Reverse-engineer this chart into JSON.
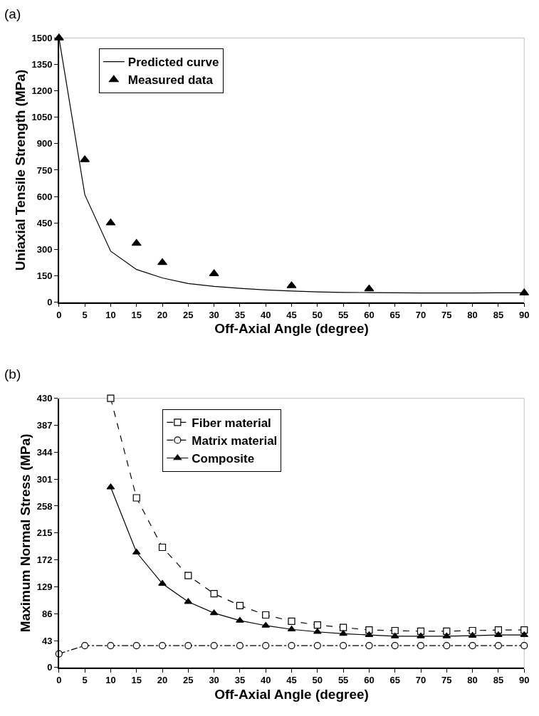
{
  "chart_data": [
    {
      "type": "line",
      "title": "(a)",
      "xlabel": "Off-Axial Angle (degree)",
      "ylabel": "Uniaxial Tensile Strength (MPa)",
      "xlim": [
        0,
        90
      ],
      "xticks": [
        0,
        5,
        10,
        15,
        20,
        25,
        30,
        35,
        40,
        45,
        50,
        55,
        60,
        65,
        70,
        75,
        80,
        85,
        90
      ],
      "ylim": [
        0,
        1500
      ],
      "yticks": [
        0,
        150,
        300,
        450,
        600,
        750,
        900,
        1050,
        1200,
        1350,
        1500
      ],
      "grid": false,
      "legend": "top left",
      "series": [
        {
          "name": "Predicted curve",
          "color": "#000000",
          "marker": "none",
          "line_style": "solid",
          "x": [
            0,
            5,
            10,
            15,
            20,
            25,
            30,
            35,
            40,
            45,
            50,
            55,
            60,
            65,
            70,
            75,
            80,
            85,
            90
          ],
          "values": [
            1500,
            610,
            290,
            186,
            138,
            106,
            90,
            79,
            70,
            64,
            59,
            56,
            55,
            54,
            53,
            53,
            53,
            54,
            54
          ]
        },
        {
          "name": "Measured data",
          "type": "scatter",
          "color": "#000000",
          "marker": "triangle",
          "x": [
            0,
            5,
            10,
            15,
            20,
            30,
            45,
            60,
            90
          ],
          "values": [
            1500,
            809,
            450,
            334,
            225,
            162,
            94,
            76,
            53
          ]
        }
      ]
    },
    {
      "type": "line",
      "title": "(b)",
      "xlabel": "Off-Axial Angle (degree)",
      "ylabel": "Maximum Normal Stress (MPa)",
      "xlim": [
        0,
        90
      ],
      "xticks": [
        0,
        5,
        10,
        15,
        20,
        25,
        30,
        35,
        40,
        45,
        50,
        55,
        60,
        65,
        70,
        75,
        80,
        85,
        90
      ],
      "ylim": [
        0,
        430
      ],
      "yticks": [
        0,
        43,
        86,
        129,
        172,
        215,
        258,
        301,
        344,
        387,
        430
      ],
      "grid": false,
      "legend": "top left",
      "series": [
        {
          "name": "Fiber material",
          "color": "#000000",
          "marker": "square",
          "line_style": "dashed",
          "x": [
            10,
            15,
            20,
            25,
            30,
            35,
            40,
            45,
            50,
            55,
            60,
            65,
            70,
            75,
            80,
            85,
            90
          ],
          "values": [
            430,
            271,
            192,
            147,
            118,
            99,
            84,
            74,
            68,
            64,
            60,
            59,
            58,
            58,
            59,
            60,
            60
          ]
        },
        {
          "name": "Matrix material",
          "color": "#000000",
          "marker": "circle",
          "line_style": "dashdot",
          "x": [
            0,
            5,
            10,
            15,
            20,
            25,
            30,
            35,
            40,
            45,
            50,
            55,
            60,
            65,
            70,
            75,
            80,
            85,
            90
          ],
          "values": [
            22,
            35,
            35,
            35,
            35,
            35,
            35,
            35,
            35,
            35,
            35,
            35,
            35,
            35,
            35,
            35,
            35,
            35,
            35
          ]
        },
        {
          "name": "Composite",
          "color": "#000000",
          "marker": "triangle",
          "line_style": "solid",
          "x": [
            10,
            15,
            20,
            25,
            30,
            35,
            40,
            45,
            50,
            55,
            60,
            65,
            70,
            75,
            80,
            85,
            90
          ],
          "values": [
            288,
            184,
            134,
            105,
            87,
            75,
            67,
            61,
            57,
            54,
            52,
            50,
            50,
            50,
            51,
            52,
            52
          ]
        }
      ]
    }
  ]
}
